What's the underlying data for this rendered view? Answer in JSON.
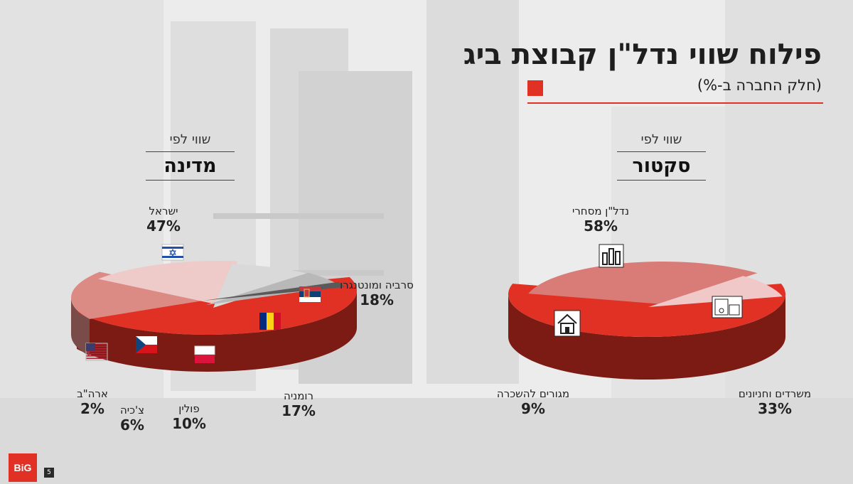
{
  "title": "פילוח שווי נדל\"ן קבוצת ביג",
  "subtitle": "(חלק החברה ב-%)",
  "colors": {
    "accent": "#e03124",
    "dark_red": "#8e1a13",
    "pink": "#d97b76",
    "light_pink": "#e8aeb0",
    "grey": "#b5b5b5",
    "light_grey": "#cfcfcf",
    "text": "#1e1e1e"
  },
  "page_number": "5",
  "logo_text": "BiG",
  "country_chart": {
    "heading_sub": "שווי לפי",
    "heading_main": "מדינה"
  },
  "sector_chart": {
    "heading_sub": "שווי לפי",
    "heading_main": "סקטור"
  },
  "chart_data": [
    {
      "type": "pie",
      "title": "מדינה",
      "categories": [
        "ישראל",
        "סרביה ומונטנגרו",
        "רומניה",
        "פולין",
        "צ'כיה",
        "ארה\"ב"
      ],
      "values": [
        47,
        18,
        17,
        10,
        6,
        2
      ],
      "labels": [
        "47%",
        "18%",
        "17%",
        "10%",
        "6%",
        "2%"
      ],
      "icons": [
        "israel-flag-icon",
        "serbia-flag-icon",
        "romania-flag-icon",
        "poland-flag-icon",
        "czech-flag-icon",
        "usa-flag-icon"
      ],
      "colors": [
        "#e03124",
        "#dc8a84",
        "#eecac8",
        "#d9d9d9",
        "#b8b8b8",
        "#5a5a5a"
      ]
    },
    {
      "type": "pie",
      "title": "סקטור",
      "categories": [
        "נדל\"ן מסחרי",
        "משרדים וחניונים",
        "מגורים להשכרה"
      ],
      "values": [
        58,
        33,
        9
      ],
      "labels": [
        "58%",
        "33%",
        "9%"
      ],
      "icons": [
        "buildings-icon",
        "parking-icon",
        "house-icon"
      ],
      "colors": [
        "#e03124",
        "#d97b76",
        "#f0c8c8"
      ]
    }
  ]
}
